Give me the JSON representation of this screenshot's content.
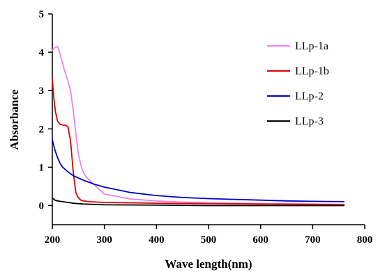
{
  "chart_data": {
    "type": "line",
    "title": "",
    "xlabel": "Wave length(nm)",
    "ylabel": "Absorbance",
    "xlim": [
      200,
      800
    ],
    "ylim": [
      -0.5,
      5
    ],
    "x_ticks": [
      "200",
      "300",
      "400",
      "500",
      "600",
      "700",
      "800"
    ],
    "y_ticks": [
      "0",
      "1",
      "2",
      "3",
      "4",
      "5"
    ],
    "grid": false,
    "legend_position": "top-right",
    "series": [
      {
        "name": "LLp-1a",
        "color": "#ee82ee",
        "x": [
          200,
          205,
          210,
          215,
          220,
          225,
          230,
          235,
          240,
          245,
          250,
          255,
          260,
          265,
          270,
          280,
          300,
          350,
          400,
          450,
          500,
          600,
          700,
          760
        ],
        "y": [
          4.05,
          4.12,
          4.15,
          3.95,
          3.7,
          3.45,
          3.25,
          3.0,
          2.5,
          1.9,
          1.35,
          1.05,
          0.85,
          0.75,
          0.68,
          0.55,
          0.3,
          0.17,
          0.12,
          0.09,
          0.07,
          0.05,
          0.04,
          0.03
        ]
      },
      {
        "name": "LLp-1b",
        "color": "#dd0000",
        "x": [
          200,
          203,
          206,
          210,
          215,
          220,
          225,
          230,
          235,
          240,
          245,
          250,
          255,
          260,
          270,
          300,
          400,
          500,
          600,
          700,
          760
        ],
        "y": [
          3.3,
          2.8,
          2.45,
          2.2,
          2.12,
          2.1,
          2.1,
          2.05,
          1.7,
          0.9,
          0.35,
          0.2,
          0.14,
          0.12,
          0.1,
          0.08,
          0.06,
          0.05,
          0.04,
          0.03,
          0.02
        ]
      },
      {
        "name": "LLp-2",
        "color": "#0000cc",
        "x": [
          200,
          205,
          210,
          215,
          220,
          230,
          240,
          250,
          260,
          280,
          300,
          350,
          400,
          450,
          500,
          550,
          600,
          650,
          700,
          760
        ],
        "y": [
          1.72,
          1.45,
          1.25,
          1.1,
          1.0,
          0.88,
          0.78,
          0.72,
          0.66,
          0.56,
          0.48,
          0.34,
          0.26,
          0.21,
          0.18,
          0.16,
          0.14,
          0.12,
          0.11,
          0.1
        ]
      },
      {
        "name": "LLp-3",
        "color": "#000000",
        "x": [
          200,
          205,
          210,
          220,
          230,
          240,
          260,
          280,
          300,
          400,
          500,
          600,
          700,
          760
        ],
        "y": [
          0.2,
          0.14,
          0.12,
          0.1,
          0.08,
          0.06,
          0.04,
          0.03,
          0.02,
          0.01,
          0.0,
          0.0,
          0.0,
          0.0
        ]
      }
    ]
  }
}
